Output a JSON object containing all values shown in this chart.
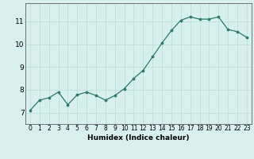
{
  "x": [
    0,
    1,
    2,
    3,
    4,
    5,
    6,
    7,
    8,
    9,
    10,
    11,
    12,
    13,
    14,
    15,
    16,
    17,
    18,
    19,
    20,
    21,
    22,
    23
  ],
  "y": [
    7.1,
    7.55,
    7.65,
    7.9,
    7.35,
    7.78,
    7.9,
    7.75,
    7.55,
    7.75,
    8.05,
    8.5,
    8.85,
    9.45,
    10.05,
    10.6,
    11.05,
    11.2,
    11.1,
    11.1,
    11.2,
    10.65,
    10.55,
    10.3
  ],
  "xlabel": "Humidex (Indice chaleur)",
  "xlim": [
    -0.5,
    23.5
  ],
  "ylim": [
    6.5,
    11.8
  ],
  "yticks": [
    7,
    8,
    9,
    10,
    11
  ],
  "xticks": [
    0,
    1,
    2,
    3,
    4,
    5,
    6,
    7,
    8,
    9,
    10,
    11,
    12,
    13,
    14,
    15,
    16,
    17,
    18,
    19,
    20,
    21,
    22,
    23
  ],
  "line_color": "#2d7a6a",
  "marker_color": "#2d7a6a",
  "bg_color": "#d8f0ec",
  "grid_color": "#b8ddd6",
  "axis_bg": "#d8f0ec",
  "xlabel_fontsize": 6.5,
  "tick_fontsize_x": 5.5,
  "tick_fontsize_y": 6.5
}
